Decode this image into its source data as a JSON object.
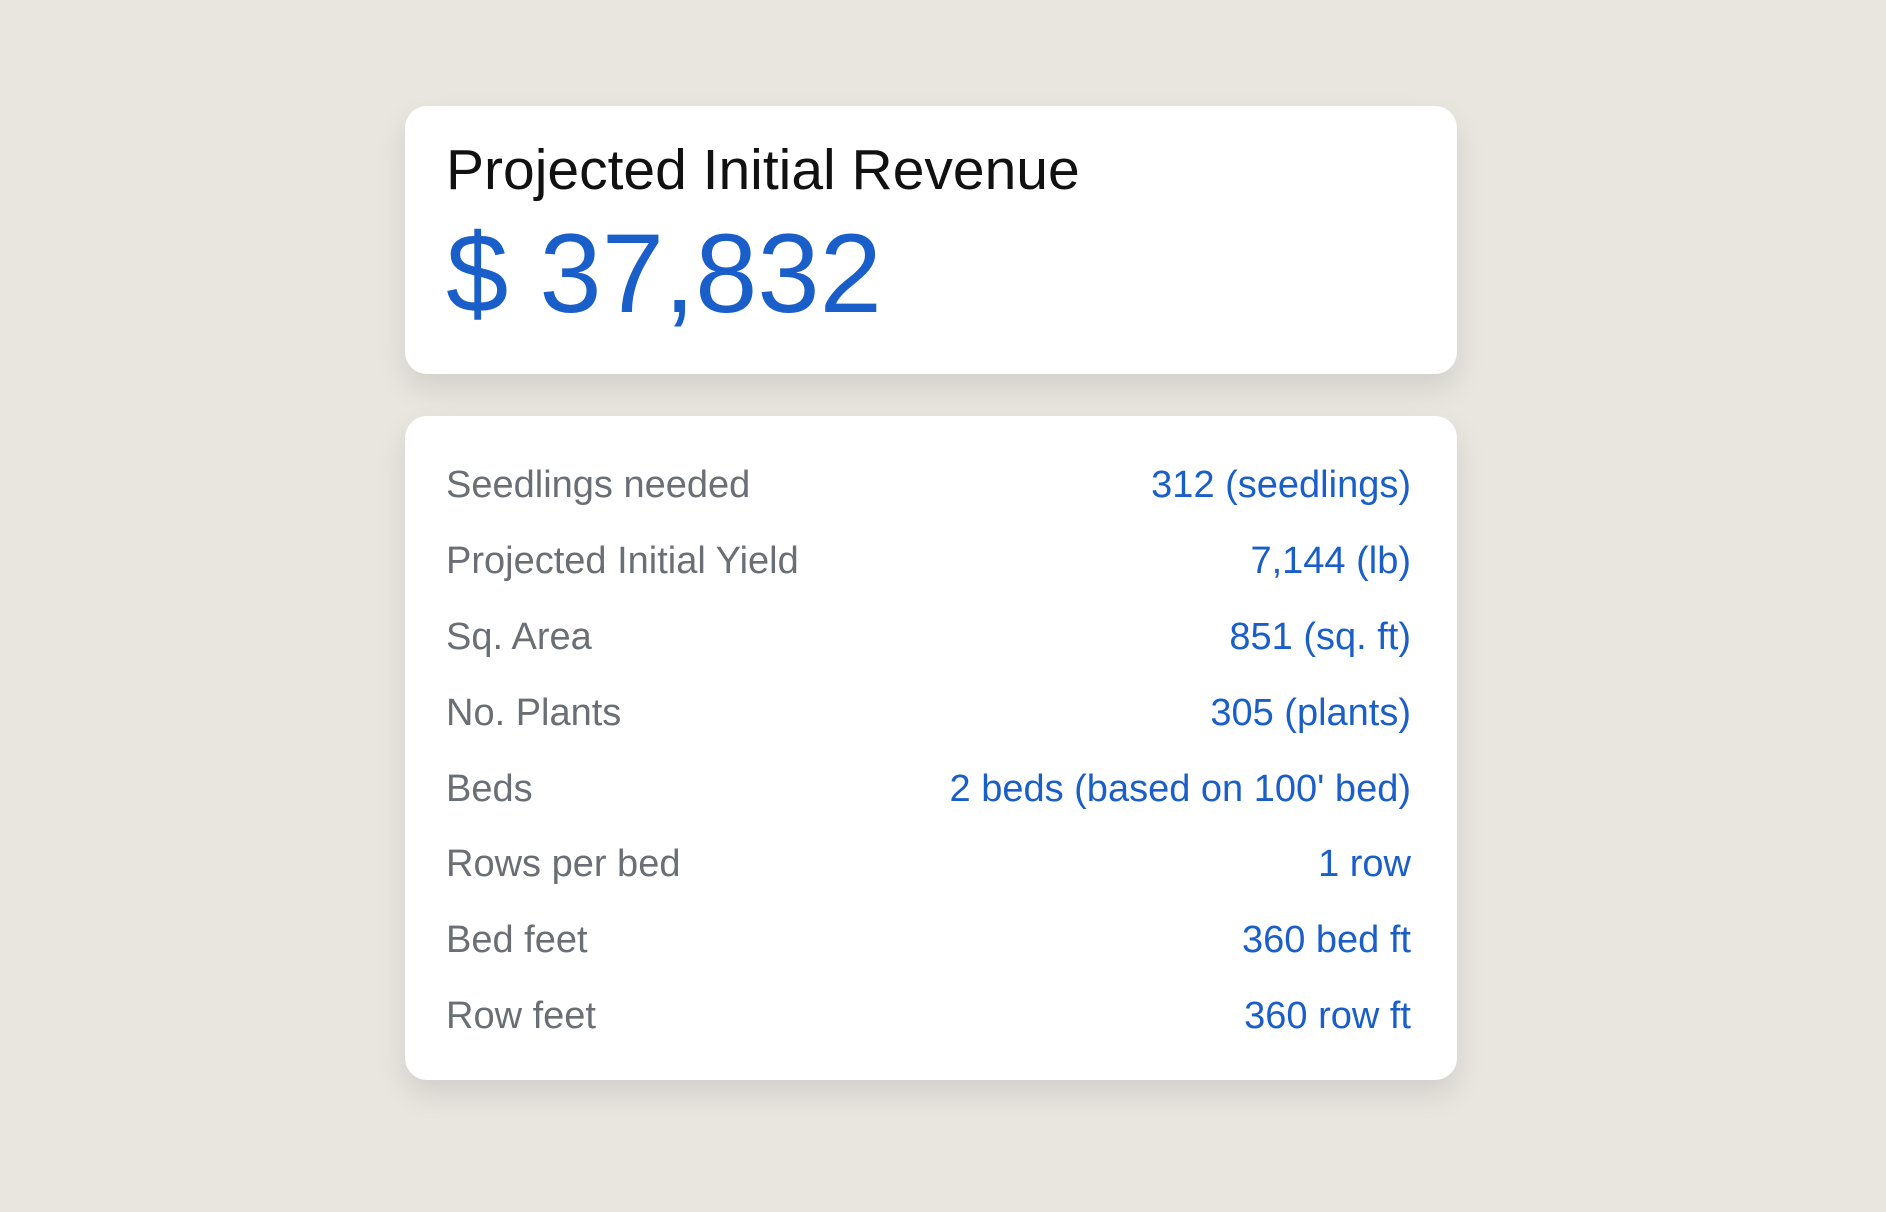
{
  "summary": {
    "title": "Projected Initial Revenue",
    "value": "$ 37,832"
  },
  "details": {
    "rows": [
      [
        "Seedlings needed",
        "312 (seedlings)"
      ],
      [
        "Projected Initial Yield",
        "7,144 (lb)"
      ],
      [
        "Sq. Area",
        "851 (sq. ft)"
      ],
      [
        "No. Plants",
        "305 (plants)"
      ],
      [
        "Beds",
        "2 beds (based on 100' bed)"
      ],
      [
        "Rows per bed",
        "1 row"
      ],
      [
        "Bed feet",
        "360 bed ft"
      ],
      [
        "Row feet",
        "360 row ft"
      ]
    ]
  }
}
